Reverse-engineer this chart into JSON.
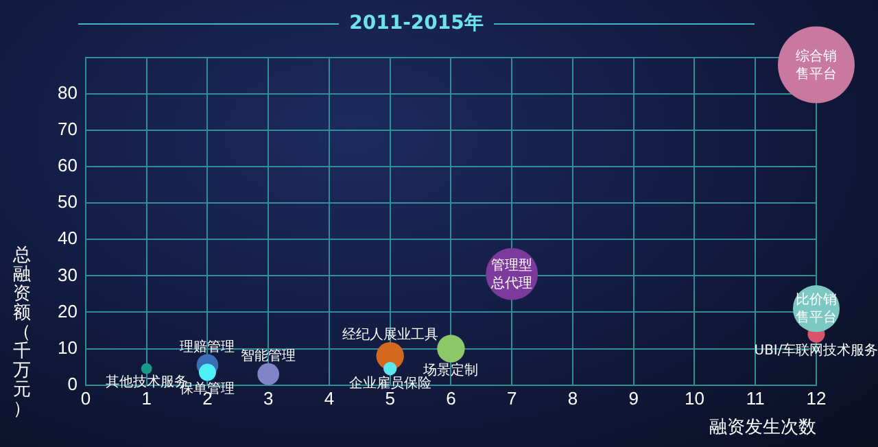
{
  "chart_data": {
    "type": "bubble",
    "title": "2011-2015年",
    "xlabel": "融资发生次数",
    "ylabel": "总融资额（千万元）",
    "xlim": [
      0,
      12
    ],
    "xticks": [
      0,
      1,
      2,
      3,
      4,
      5,
      6,
      7,
      8,
      9,
      10,
      11,
      12
    ],
    "ylim": [
      0,
      90
    ],
    "yticks": [
      0,
      10,
      20,
      30,
      40,
      50,
      60,
      70,
      80,
      {
        "value": 90,
        "label": null
      }
    ],
    "grid": true,
    "legend": false,
    "series": [
      {
        "name": "其他技术服务",
        "color": "#1a9a8a",
        "x": [
          1
        ],
        "values": [
          4.5
        ],
        "sizes": [
          0.02
        ]
      },
      {
        "name": "理赔管理",
        "color": "#3a6fb5",
        "x": [
          2
        ],
        "values": [
          5.5
        ],
        "sizes": [
          0.08
        ]
      },
      {
        "name": "保单管理",
        "color": "#4ef0f5",
        "x": [
          2
        ],
        "values": [
          3.5
        ],
        "sizes": [
          0.05
        ]
      },
      {
        "name": "智能管理",
        "color": "#8085c8",
        "x": [
          3
        ],
        "values": [
          3
        ],
        "sizes": [
          0.08
        ]
      },
      {
        "name": "经纪人展业工具",
        "color": "#d2691e",
        "x": [
          5
        ],
        "values": [
          8
        ],
        "sizes": [
          0.13
        ]
      },
      {
        "name": "企业雇员保险",
        "color": "#5ee6f0",
        "x": [
          5
        ],
        "values": [
          4.5
        ],
        "sizes": [
          0.03
        ]
      },
      {
        "name": "场景定制",
        "color": "#8cc86a",
        "x": [
          6
        ],
        "values": [
          10
        ],
        "sizes": [
          0.13
        ]
      },
      {
        "name": "管理型总代理",
        "color": "#7b3a9c",
        "x": [
          7
        ],
        "values": [
          30.5
        ],
        "sizes": [
          0.46
        ]
      },
      {
        "name": "UBI/车联网技术服务",
        "color": "#d9546a",
        "x": [
          12
        ],
        "values": [
          14
        ],
        "sizes": [
          0.05
        ]
      },
      {
        "name": "比价销售平台",
        "color": "#7cc9c4",
        "x": [
          12
        ],
        "values": [
          21
        ],
        "sizes": [
          0.37
        ]
      },
      {
        "name": "综合销售平台",
        "color": "#c9799f",
        "x": [
          12
        ],
        "values": [
          88
        ],
        "sizes": [
          1
        ]
      }
    ]
  }
}
